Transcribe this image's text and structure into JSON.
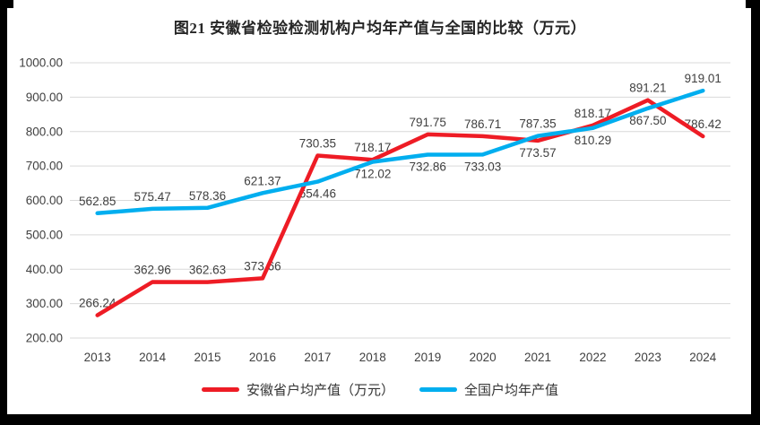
{
  "chart_data": {
    "type": "line",
    "title": "图21 安徽省检验检测机构户均年产值与全国的比较（万元）",
    "categories": [
      "2013",
      "2014",
      "2015",
      "2016",
      "2017",
      "2018",
      "2019",
      "2020",
      "2021",
      "2022",
      "2023",
      "2024"
    ],
    "series": [
      {
        "id": "anhui",
        "name": "安徽省户均产值（万元）",
        "color": "#ee1c25",
        "values": [
          266.24,
          362.96,
          362.63,
          373.66,
          730.35,
          718.17,
          791.75,
          786.71,
          773.57,
          818.17,
          891.21,
          786.42
        ]
      },
      {
        "id": "national",
        "name": "全国户均年产值",
        "color": "#00aeef",
        "values": [
          562.85,
          575.47,
          578.36,
          621.37,
          654.46,
          712.02,
          732.86,
          733.03,
          787.35,
          810.29,
          867.5,
          919.01
        ]
      }
    ],
    "ylim": [
      200,
      1000
    ],
    "ytick_step": 100,
    "yticks": [
      "1000.00",
      "900.00",
      "800.00",
      "700.00",
      "600.00",
      "500.00",
      "400.00",
      "300.00",
      "200.00"
    ],
    "grid": true,
    "gridline_color": "#d9d9d9",
    "axis_text_color": "#404040",
    "data_labels": true,
    "legend_position": "bottom"
  }
}
